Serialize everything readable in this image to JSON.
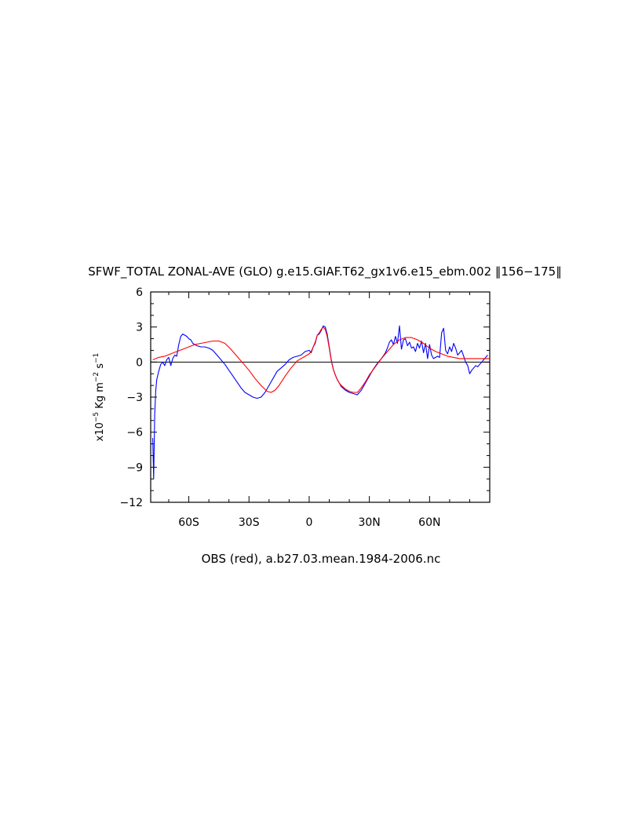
{
  "chart_data": {
    "type": "line",
    "title": "SFWF_TOTAL ZONAL-AVE (GLO) g.e15.GIAF.T62_gx1v6.e15_ebm.002 ‖156−175‖",
    "xlabel": "OBS (red), a.b27.03.mean.1984-2006.nc",
    "ylabel": {
      "prefix": "x10",
      "exp1": "−5",
      "mid": " Kg m",
      "exp2": "−2",
      "tail": " s",
      "exp3": "−1"
    },
    "xlim": [
      -79,
      90
    ],
    "ylim": [
      -12,
      6
    ],
    "x_ticks": [
      {
        "value": -60,
        "label": "60S"
      },
      {
        "value": -30,
        "label": "30S"
      },
      {
        "value": 0,
        "label": "0"
      },
      {
        "value": 30,
        "label": "30N"
      },
      {
        "value": 60,
        "label": "60N"
      }
    ],
    "y_ticks": [
      {
        "value": 6,
        "label": "6"
      },
      {
        "value": 3,
        "label": "3"
      },
      {
        "value": 0,
        "label": "0"
      },
      {
        "value": -3,
        "label": "−3"
      },
      {
        "value": -6,
        "label": "−6"
      },
      {
        "value": -9,
        "label": "−9"
      },
      {
        "value": -12,
        "label": "−12"
      }
    ],
    "zero_line": true,
    "grid": false,
    "series": [
      {
        "color": "#0000ff",
        "x": [
          -78,
          -77.5,
          -77,
          -76.5,
          -76,
          -75,
          -74,
          -73,
          -72,
          -71,
          -70,
          -69,
          -68,
          -67,
          -66,
          -65,
          -64,
          -63,
          -62,
          -61,
          -60,
          -59,
          -58,
          -56,
          -54,
          -52,
          -50,
          -48,
          -46,
          -44,
          -42,
          -40,
          -38,
          -36,
          -34,
          -32,
          -30,
          -28,
          -26,
          -24,
          -22,
          -20,
          -19,
          -18,
          -17,
          -16,
          -14,
          -12,
          -10,
          -8,
          -6,
          -4,
          -2,
          0,
          1,
          2,
          3,
          4,
          5,
          6,
          7,
          8,
          9,
          10,
          11,
          12,
          13,
          14,
          15,
          16,
          18,
          20,
          22,
          24,
          26,
          28,
          30,
          32,
          34,
          36,
          38,
          39,
          40,
          41,
          42,
          43,
          44,
          45,
          46,
          47,
          48,
          49,
          50,
          51,
          52,
          53,
          54,
          55,
          56,
          57,
          58,
          59,
          60,
          61,
          62,
          63,
          64,
          65,
          66,
          67,
          68,
          69,
          70,
          71,
          72,
          73,
          74,
          75,
          76,
          77,
          78,
          79,
          80,
          81,
          82,
          83,
          84,
          85,
          86,
          87,
          88,
          89
        ],
        "values": [
          -6.5,
          -10.0,
          -4.5,
          -2.5,
          -1.5,
          -0.8,
          -0.2,
          0.0,
          -0.3,
          0.2,
          0.4,
          -0.3,
          0.3,
          0.6,
          0.5,
          1.5,
          2.2,
          2.4,
          2.3,
          2.2,
          2.0,
          1.9,
          1.6,
          1.4,
          1.3,
          1.3,
          1.2,
          1.0,
          0.6,
          0.2,
          -0.2,
          -0.7,
          -1.2,
          -1.7,
          -2.2,
          -2.6,
          -2.8,
          -3.0,
          -3.1,
          -3.0,
          -2.6,
          -2.0,
          -1.7,
          -1.4,
          -1.1,
          -0.8,
          -0.5,
          -0.2,
          0.2,
          0.4,
          0.5,
          0.6,
          0.9,
          1.0,
          0.8,
          1.3,
          1.6,
          2.3,
          2.4,
          2.7,
          3.1,
          3.0,
          2.4,
          1.3,
          0.2,
          -0.6,
          -1.1,
          -1.5,
          -1.8,
          -2.1,
          -2.4,
          -2.6,
          -2.7,
          -2.8,
          -2.4,
          -1.8,
          -1.2,
          -0.6,
          -0.1,
          0.3,
          0.8,
          1.2,
          1.7,
          1.9,
          1.5,
          2.2,
          1.6,
          3.1,
          1.1,
          1.9,
          2.0,
          1.4,
          1.7,
          1.2,
          1.3,
          0.9,
          1.6,
          1.2,
          1.8,
          0.8,
          1.6,
          0.3,
          1.5,
          0.6,
          0.3,
          0.4,
          0.5,
          0.4,
          2.5,
          2.9,
          1.0,
          0.7,
          1.3,
          0.9,
          1.6,
          1.2,
          0.6,
          0.8,
          1.0,
          0.5,
          0.0,
          -0.3,
          -1.0,
          -0.7,
          -0.5,
          -0.3,
          -0.4,
          -0.2,
          0.0,
          0.2,
          0.4,
          0.6
        ]
      },
      {
        "color": "#ff0000",
        "x": [
          -78,
          -75,
          -72,
          -69,
          -66,
          -63,
          -60,
          -57,
          -54,
          -51,
          -48,
          -45,
          -42,
          -39,
          -36,
          -33,
          -30,
          -27,
          -24,
          -21,
          -19,
          -17,
          -15,
          -12,
          -9,
          -6,
          -3,
          0,
          1,
          2,
          3,
          4,
          5,
          6,
          7,
          8,
          9,
          10,
          11,
          12,
          13,
          14,
          15,
          16,
          18,
          20,
          22,
          24,
          26,
          28,
          30,
          33,
          36,
          39,
          42,
          45,
          48,
          51,
          54,
          57,
          60,
          63,
          66,
          69,
          72,
          75,
          78,
          81,
          84,
          87,
          90
        ],
        "values": [
          0.2,
          0.4,
          0.5,
          0.7,
          0.9,
          1.1,
          1.3,
          1.5,
          1.6,
          1.7,
          1.8,
          1.8,
          1.6,
          1.1,
          0.5,
          -0.1,
          -0.7,
          -1.4,
          -2.0,
          -2.5,
          -2.6,
          -2.4,
          -2.0,
          -1.2,
          -0.5,
          0.1,
          0.4,
          0.7,
          0.9,
          1.3,
          1.7,
          2.3,
          2.5,
          2.8,
          3.0,
          2.8,
          2.2,
          1.2,
          0.1,
          -0.6,
          -1.1,
          -1.5,
          -1.8,
          -2.0,
          -2.3,
          -2.5,
          -2.6,
          -2.6,
          -2.2,
          -1.7,
          -1.1,
          -0.4,
          0.3,
          0.9,
          1.5,
          1.9,
          2.1,
          2.1,
          1.9,
          1.6,
          1.2,
          0.9,
          0.7,
          0.5,
          0.4,
          0.3,
          0.3,
          0.3,
          0.3,
          0.3,
          0.3
        ]
      }
    ]
  }
}
